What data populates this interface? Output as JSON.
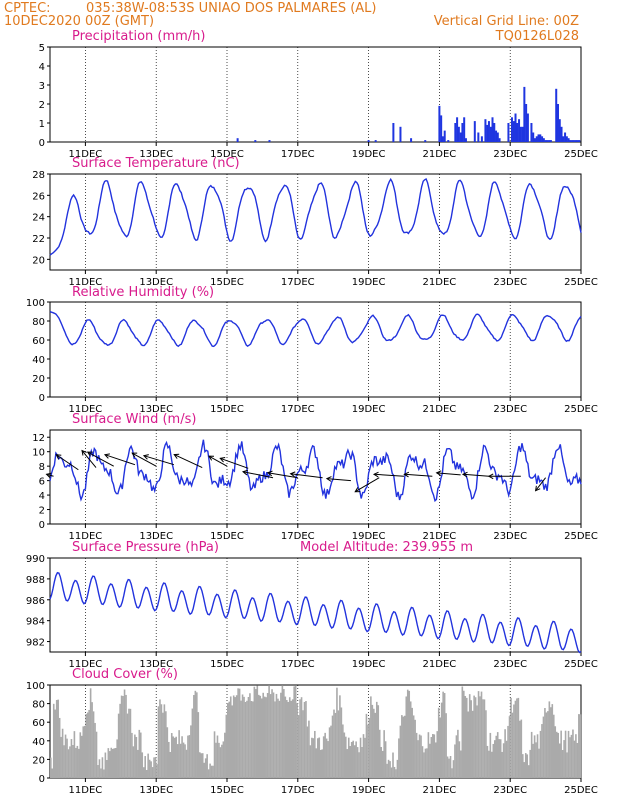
{
  "header": {
    "source": "CPTEC:",
    "location": "035:38W-08:53S  UNIAO DOS PALMARES (AL)",
    "init_time": "10DEC2020 00Z (GMT)",
    "grid_note": "Vertical Grid Line: 00Z",
    "model": "TQ0126L028"
  },
  "colors": {
    "line": "#2233dd",
    "bar": "#1f35e0",
    "cloud": "#aaaaaa",
    "title": "#d81b8c",
    "header": "#e07a1f"
  },
  "x_ticks": [
    "11DEC",
    "13DEC",
    "15DEC",
    "17DEC",
    "19DEC",
    "21DEC",
    "23DEC",
    "25DEC"
  ],
  "chart_data": [
    {
      "type": "bar",
      "title": "Precipitation (mm/h)",
      "ylim": [
        0,
        5
      ],
      "yticks": [
        0,
        1,
        2,
        3,
        4,
        5
      ],
      "x_days": [
        5.3,
        5.8,
        6.2,
        9.0,
        9.2,
        9.7,
        9.9,
        10.2,
        10.6,
        11.0,
        11.05,
        11.1,
        11.15,
        11.25,
        11.45,
        11.5,
        11.55,
        11.6,
        11.65,
        11.7,
        11.75,
        12.0,
        12.1,
        12.2,
        12.3,
        12.35,
        12.4,
        12.45,
        12.5,
        12.55,
        12.6,
        12.65,
        12.7,
        12.95,
        13.05,
        13.1,
        13.15,
        13.2,
        13.25,
        13.3,
        13.35,
        13.4,
        13.45,
        13.5,
        13.6,
        13.65,
        13.7,
        13.75,
        13.8,
        13.85,
        13.9,
        13.95,
        14.0,
        14.05,
        14.1,
        14.15,
        14.3,
        14.35,
        14.4,
        14.45,
        14.5,
        14.55,
        14.6,
        14.65,
        14.7,
        14.75,
        14.8,
        14.85,
        14.9,
        14.95
      ],
      "values": [
        0.2,
        0.1,
        0.1,
        0.1,
        0.1,
        1.0,
        0.8,
        0.2,
        0.1,
        1.9,
        1.4,
        0.3,
        0.6,
        0.1,
        1.0,
        1.3,
        0.8,
        0.5,
        1.0,
        1.3,
        0.2,
        1.1,
        0.5,
        0.3,
        1.2,
        0.9,
        1.1,
        0.8,
        1.3,
        1.0,
        0.6,
        0.5,
        0.2,
        1.0,
        1.3,
        1.1,
        1.5,
        1.0,
        1.2,
        0.8,
        0.8,
        2.9,
        2.0,
        1.5,
        1.0,
        0.5,
        0.2,
        0.3,
        0.4,
        0.4,
        0.3,
        0.2,
        0.1,
        0.1,
        0.1,
        0.1,
        2.8,
        2.0,
        1.2,
        0.8,
        0.3,
        0.5,
        0.3,
        0.2,
        0.1,
        0.1,
        0.1,
        0.1,
        0.1,
        0.1
      ]
    },
    {
      "type": "line",
      "title": "Surface Temperature (nC)",
      "ylim": [
        19,
        28
      ],
      "yticks": [
        20,
        22,
        24,
        26,
        28
      ],
      "base": 24.6,
      "amp": 2.5,
      "start": 20.4,
      "rise_days": 0.8
    },
    {
      "type": "line",
      "title": "Relative Humidity (%)",
      "ylim": [
        0,
        100
      ],
      "yticks": [
        0,
        20,
        40,
        60,
        80,
        100
      ],
      "base": 66,
      "amp": 13,
      "trend_end": 8,
      "start": 90
    },
    {
      "type": "line",
      "title": "Surface Wind (m/s)",
      "ylim": [
        0,
        13
      ],
      "yticks": [
        0,
        2,
        4,
        6,
        8,
        10,
        12
      ],
      "base": 7.3,
      "amp": 2.4,
      "arrows": [
        {
          "x": 0.1,
          "y": 6.6,
          "dx": -7,
          "dy": -2
        },
        {
          "x": 0.8,
          "y": 7.5,
          "dx": -22,
          "dy": -15
        },
        {
          "x": 1.3,
          "y": 7.8,
          "dx": -14,
          "dy": -17
        },
        {
          "x": 1.8,
          "y": 8.0,
          "dx": -26,
          "dy": -14
        },
        {
          "x": 2.4,
          "y": 8.2,
          "dx": -30,
          "dy": -10
        },
        {
          "x": 3.0,
          "y": 8.0,
          "dx": -24,
          "dy": -13
        },
        {
          "x": 3.5,
          "y": 8.2,
          "dx": -30,
          "dy": -9
        },
        {
          "x": 4.3,
          "y": 7.8,
          "dx": -28,
          "dy": -13
        },
        {
          "x": 5.0,
          "y": 8.0,
          "dx": -18,
          "dy": -10
        },
        {
          "x": 5.6,
          "y": 7.7,
          "dx": -28,
          "dy": -10
        },
        {
          "x": 6.3,
          "y": 6.4,
          "dx": -30,
          "dy": -6
        },
        {
          "x": 7.0,
          "y": 6.4,
          "dx": -30,
          "dy": -5
        },
        {
          "x": 7.7,
          "y": 6.4,
          "dx": -32,
          "dy": -4
        },
        {
          "x": 8.5,
          "y": 6.0,
          "dx": -24,
          "dy": -2
        },
        {
          "x": 9.3,
          "y": 6.4,
          "dx": -24,
          "dy": 14
        },
        {
          "x": 10.0,
          "y": 6.6,
          "dx": -30,
          "dy": -2
        },
        {
          "x": 10.8,
          "y": 6.6,
          "dx": -28,
          "dy": -2
        },
        {
          "x": 11.6,
          "y": 6.8,
          "dx": -24,
          "dy": -2
        },
        {
          "x": 12.4,
          "y": 6.6,
          "dx": -26,
          "dy": -2
        },
        {
          "x": 13.3,
          "y": 6.6,
          "dx": -32,
          "dy": 0
        },
        {
          "x": 14.0,
          "y": 6.4,
          "dx": -10,
          "dy": 13
        }
      ]
    },
    {
      "type": "line",
      "title": "Surface Pressure (hPa)",
      "annotation": "Model Altitude: 239.955 m",
      "ylim": [
        981,
        990
      ],
      "yticks": [
        982,
        984,
        986,
        988,
        990
      ],
      "base_start": 987.2,
      "base_end": 982.2,
      "amp": 1.2
    },
    {
      "type": "area",
      "title": "Cloud Cover (%)",
      "ylim": [
        0,
        100
      ],
      "yticks": [
        0,
        20,
        40,
        60,
        80,
        100
      ]
    }
  ]
}
